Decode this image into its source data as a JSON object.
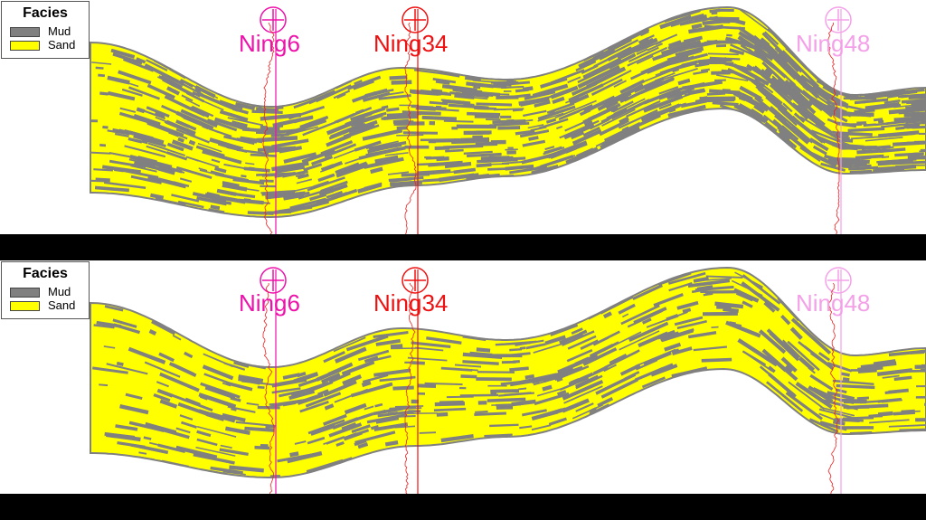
{
  "panels": [
    {
      "mud_fraction": 0.35
    },
    {
      "mud_fraction": 0.18
    }
  ],
  "legend": {
    "title": "Facies",
    "items": [
      {
        "label": "Mud",
        "color": "#808080"
      },
      {
        "label": "Sand",
        "color": "#ffff00"
      }
    ]
  },
  "wells": [
    {
      "name": "Ning6",
      "color": "#ee11aa"
    },
    {
      "name": "Ning34",
      "color": "#ee1111"
    },
    {
      "name": "Ning48",
      "color": "#f4a0e8"
    }
  ],
  "colors": {
    "sand": "#ffff00",
    "mud": "#808080",
    "log_curve": "#ee2020",
    "background": "#ffffff"
  }
}
